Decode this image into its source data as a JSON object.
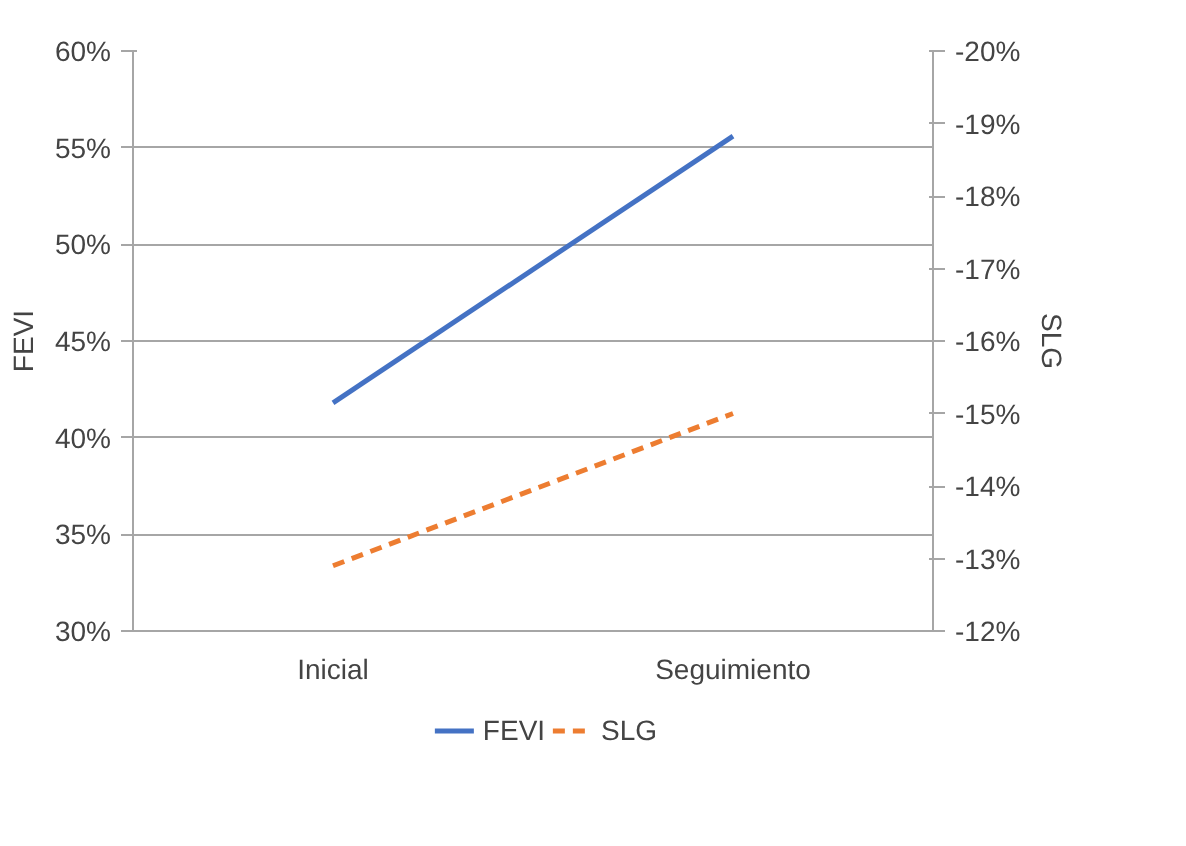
{
  "chart_data": {
    "type": "line",
    "categories": [
      "Inicial",
      "Seguimiento"
    ],
    "ylabel": "FEVI",
    "y2label": "SLG",
    "series": [
      {
        "name": "FEVI",
        "color": "#4472c4",
        "values": [
          41.8,
          55.6
        ],
        "line_style": "solid"
      },
      {
        "name": "SLG",
        "color": "#ed7d31",
        "values": [
          -12.9,
          -15.0
        ],
        "axis": "y2",
        "line_style": "dashed"
      }
    ],
    "ylim": [
      30,
      60
    ],
    "yticks": [
      {
        "value": 30,
        "label": "30%"
      },
      {
        "value": 35,
        "label": "35%"
      },
      {
        "value": 40,
        "label": "40%"
      },
      {
        "value": 45,
        "label": "45%"
      },
      {
        "value": 50,
        "label": "50%"
      },
      {
        "value": 55,
        "label": "55%"
      },
      {
        "value": 60,
        "label": "60%"
      }
    ],
    "y2lim": [
      -12,
      -20
    ],
    "y2ticks": [
      {
        "value": -12,
        "label": "-12%"
      },
      {
        "value": -13,
        "label": "-13%"
      },
      {
        "value": -14,
        "label": "-14%"
      },
      {
        "value": -15,
        "label": "-15%"
      },
      {
        "value": -16,
        "label": "-16%"
      },
      {
        "value": -17,
        "label": "-17%"
      },
      {
        "value": -18,
        "label": "-18%"
      },
      {
        "value": -19,
        "label": "-19%"
      },
      {
        "value": -20,
        "label": "-20%"
      }
    ],
    "grid": "y",
    "legend": "bottom",
    "marker": "none"
  }
}
